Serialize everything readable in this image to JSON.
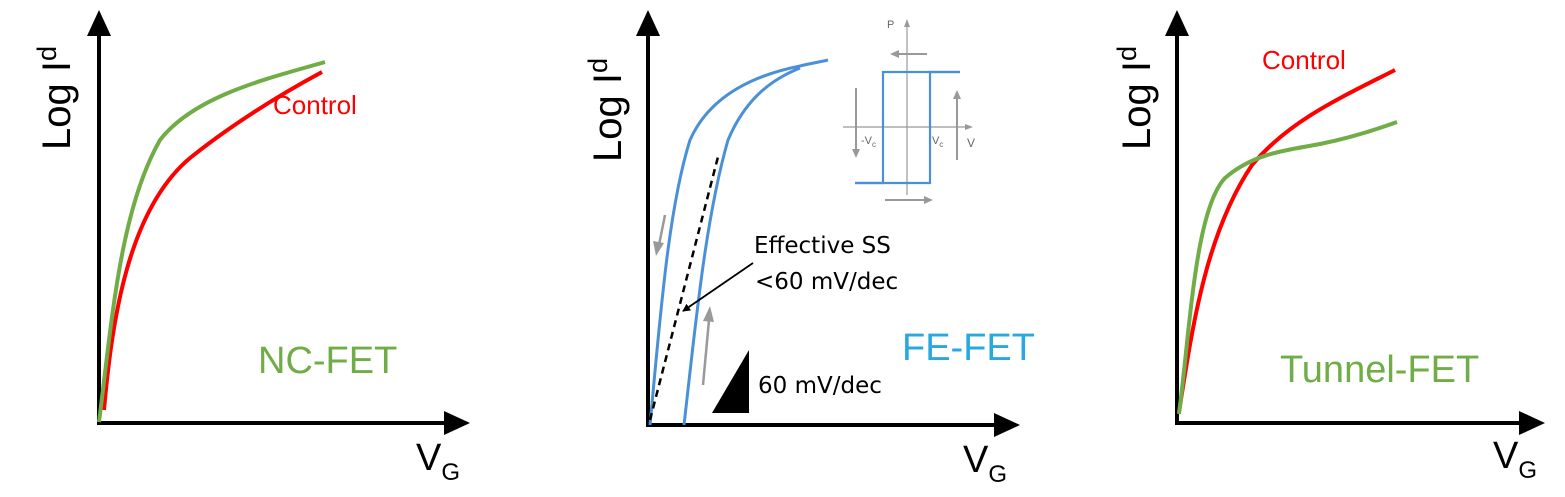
{
  "colors": {
    "axis": "#000000",
    "control": "#ff0000",
    "nc_fet": "#70ad47",
    "fe_fet": "#4a90d9",
    "fe_label": "#29a8e0",
    "tunnel_fet": "#70ad47",
    "gray": "#999999"
  },
  "panels": {
    "nc": {
      "ylabel_main": "Log I",
      "ylabel_sub": "d",
      "xlabel_main": "V",
      "xlabel_sub": "G",
      "control_label": "Control",
      "device_label": "NC-FET"
    },
    "fe": {
      "ylabel_main": "Log I",
      "ylabel_sub": "d",
      "xlabel_main": "V",
      "xlabel_sub": "G",
      "device_label": "FE-FET",
      "callout_line1": "Effective SS",
      "callout_line2": "<60 mV/dec",
      "slope_label": "60 mV/dec",
      "inset": {
        "p_label": "P",
        "v_label": "V",
        "neg_vc_main": "-V",
        "neg_vc_sub": "c",
        "pos_vc_main": "V",
        "pos_vc_sub": "c"
      }
    },
    "tunnel": {
      "ylabel_main": "Log I",
      "ylabel_sub": "d",
      "xlabel_main": "V",
      "xlabel_sub": "G",
      "control_label": "Control",
      "device_label": "Tunnel-FET"
    }
  }
}
